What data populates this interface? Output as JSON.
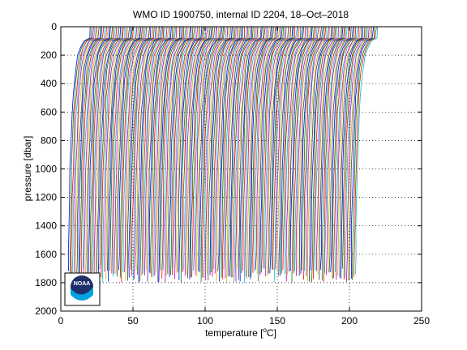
{
  "chart_data": {
    "type": "line",
    "title": "WMO ID 1900750, internal ID 2204, 18–Oct–2018",
    "xlabel_parts": [
      "temperature [",
      "o",
      "C]"
    ],
    "ylabel": "pressure [dbar]",
    "xlim": [
      0,
      250
    ],
    "ylim": [
      0,
      2000
    ],
    "y_reversed": true,
    "grid": true,
    "grid_style": "dotted",
    "xticks": [
      0,
      50,
      100,
      150,
      200,
      250
    ],
    "yticks": [
      0,
      200,
      400,
      600,
      800,
      1000,
      1200,
      1400,
      1600,
      1800,
      2000
    ],
    "xtick_labels": [
      "0",
      "50",
      "100",
      "150",
      "200",
      "250"
    ],
    "ytick_labels": [
      "0",
      "200",
      "400",
      "600",
      "800",
      "1000",
      "1200",
      "1400",
      "1600",
      "1800",
      "2000"
    ],
    "series_description": "~200 successive temperature profiles, each offset by one unit along the temperature axis",
    "profile_count": 200,
    "profile_offset_per_cast": 1,
    "profile_shape": {
      "pressure": [
        0,
        80,
        100,
        150,
        200,
        300,
        400,
        500,
        600,
        800,
        1000,
        1200,
        1400,
        1600,
        1800
      ],
      "temperature_anomaly": [
        15.5,
        15.0,
        11.0,
        8.5,
        6.8,
        5.2,
        4.2,
        3.5,
        2.9,
        2.1,
        1.5,
        1.0,
        0.6,
        0.3,
        0.1
      ]
    },
    "max_pressure_range": [
      1700,
      1800
    ],
    "series_colors": [
      "#0000ff",
      "#008000",
      "#ff0000",
      "#00bfbf",
      "#bf00bf",
      "#bfbf00",
      "#404040"
    ]
  },
  "logo": {
    "text": "NOAA",
    "colors": {
      "primary": "#1e2f6b",
      "accent": "#00a3e0"
    }
  }
}
